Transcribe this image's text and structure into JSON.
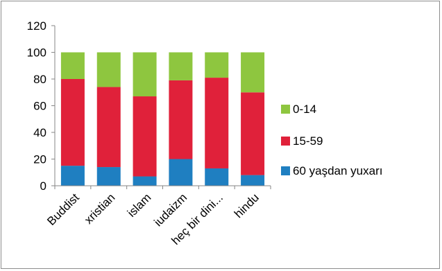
{
  "chart_data": {
    "type": "bar",
    "stacked": true,
    "categories": [
      "Buddist",
      "xristian",
      "islam",
      "iudaizm",
      "heç bir dini...",
      "hindu"
    ],
    "series": [
      {
        "name": "60 yaşdan yuxarı",
        "color": "#1f7fc1",
        "values": [
          15,
          14,
          7,
          20,
          13,
          8
        ]
      },
      {
        "name": "15-59",
        "color": "#e0213a",
        "values": [
          65,
          60,
          60,
          59,
          68,
          62
        ]
      },
      {
        "name": "0-14",
        "color": "#8ec63f",
        "values": [
          20,
          26,
          33,
          21,
          19,
          30
        ]
      }
    ],
    "yticks": [
      "0",
      "20",
      "40",
      "60",
      "80",
      "100",
      "120"
    ],
    "ylim": [
      0,
      120
    ],
    "grid": false,
    "legend_position": "right",
    "legend_order": [
      "0-14",
      "15-59",
      "60 yaşdan yuxarı"
    ],
    "title": "",
    "xlabel": "",
    "ylabel": ""
  }
}
